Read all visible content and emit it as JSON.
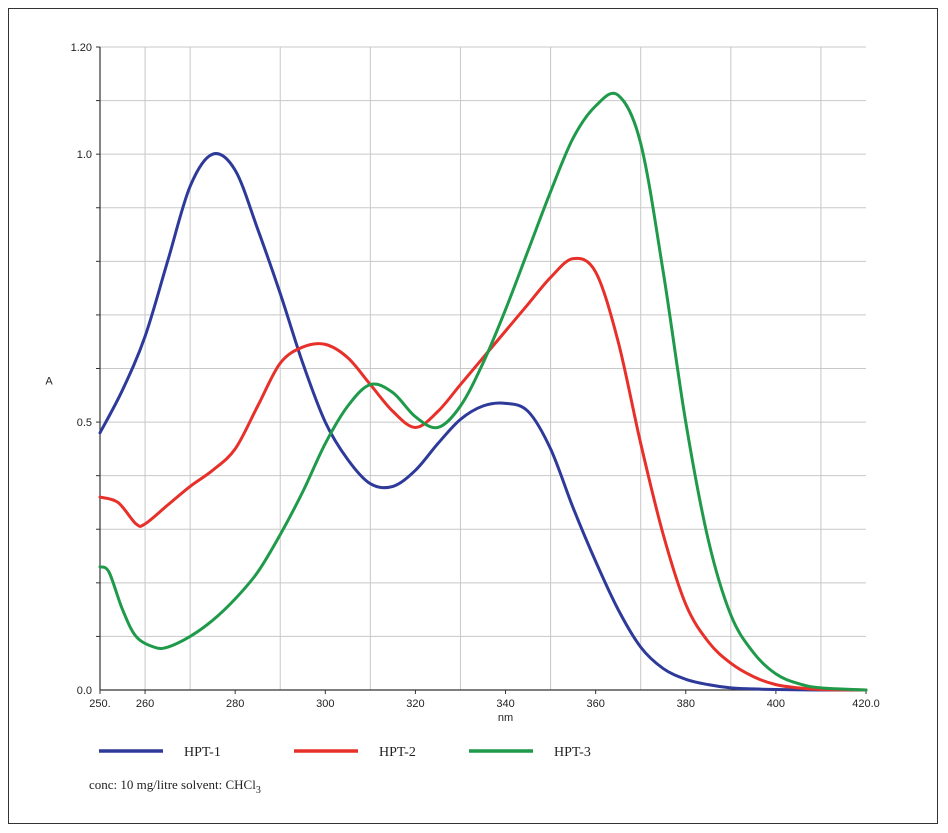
{
  "chart_data": {
    "type": "line",
    "xlabel": "nm",
    "ylabel": "A",
    "xlim": [
      250,
      420
    ],
    "ylim": [
      0,
      1.2
    ],
    "x_ticks": [
      250,
      260,
      280,
      300,
      320,
      340,
      360,
      380,
      400,
      420
    ],
    "x_tick_labels": [
      "250.",
      "260",
      "280",
      "300",
      "320",
      "340",
      "360",
      "380",
      "400",
      "420.0"
    ],
    "y_ticks": [
      0,
      0.5,
      1.0,
      1.2
    ],
    "y_tick_labels": [
      "0.0",
      "0.5",
      "1.0",
      "1.20"
    ],
    "grid": true,
    "legend_position": "bottom",
    "series": [
      {
        "name": "HPT-1",
        "color": "#2e3a9a",
        "x": [
          250,
          255,
          260,
          265,
          270,
          275,
          280,
          285,
          290,
          295,
          300,
          305,
          310,
          315,
          320,
          325,
          330,
          335,
          340,
          345,
          350,
          355,
          360,
          365,
          370,
          375,
          380,
          385,
          390,
          395,
          400,
          410,
          420
        ],
        "y": [
          0.48,
          0.56,
          0.66,
          0.8,
          0.94,
          1.0,
          0.97,
          0.86,
          0.74,
          0.61,
          0.5,
          0.43,
          0.385,
          0.38,
          0.41,
          0.46,
          0.505,
          0.53,
          0.535,
          0.52,
          0.45,
          0.34,
          0.24,
          0.15,
          0.08,
          0.04,
          0.02,
          0.01,
          0.004,
          0.002,
          0.001,
          0,
          0
        ]
      },
      {
        "name": "HPT-2",
        "color": "#e8302a",
        "x": [
          250,
          254,
          258,
          260,
          265,
          270,
          275,
          280,
          285,
          290,
          295,
          300,
          305,
          310,
          315,
          320,
          325,
          330,
          335,
          340,
          345,
          350,
          355,
          360,
          365,
          370,
          375,
          380,
          385,
          390,
          395,
          400,
          405,
          410,
          420
        ],
        "y": [
          0.36,
          0.35,
          0.31,
          0.31,
          0.345,
          0.38,
          0.41,
          0.45,
          0.53,
          0.61,
          0.64,
          0.645,
          0.62,
          0.57,
          0.52,
          0.49,
          0.52,
          0.57,
          0.62,
          0.67,
          0.72,
          0.77,
          0.805,
          0.78,
          0.65,
          0.46,
          0.29,
          0.16,
          0.09,
          0.05,
          0.025,
          0.01,
          0.004,
          0.001,
          0
        ]
      },
      {
        "name": "HPT-3",
        "color": "#1f9a4a",
        "x": [
          250,
          252,
          255,
          258,
          262,
          265,
          270,
          275,
          280,
          285,
          290,
          295,
          300,
          305,
          310,
          315,
          320,
          325,
          330,
          335,
          340,
          345,
          350,
          355,
          360,
          365,
          370,
          375,
          380,
          385,
          390,
          395,
          400,
          405,
          410,
          420
        ],
        "y": [
          0.23,
          0.22,
          0.15,
          0.1,
          0.08,
          0.08,
          0.1,
          0.13,
          0.17,
          0.22,
          0.29,
          0.37,
          0.46,
          0.53,
          0.57,
          0.555,
          0.51,
          0.49,
          0.53,
          0.61,
          0.71,
          0.82,
          0.93,
          1.03,
          1.09,
          1.11,
          1.02,
          0.78,
          0.5,
          0.28,
          0.14,
          0.07,
          0.03,
          0.012,
          0.004,
          0
        ]
      }
    ]
  },
  "footnote": {
    "prefix": "conc: 10 mg/litre solvent: CHCl",
    "subscript": "3"
  }
}
